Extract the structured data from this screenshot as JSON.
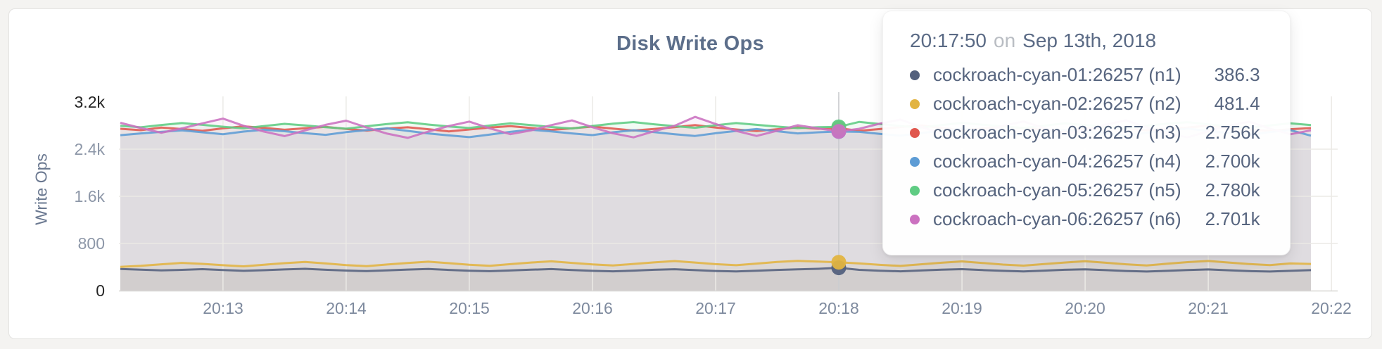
{
  "page": {
    "background": "#f4f3f1"
  },
  "card": {
    "background": "#ffffff",
    "border_color": "#e3e2e0"
  },
  "title": "Disk Write Ops",
  "tooltip": {
    "time": "20:17:50",
    "separator": "on",
    "date": "Sep 13th, 2018",
    "rows": [
      {
        "label": "cockroach-cyan-01:26257 (n1)",
        "value": "386.3",
        "color": "#53607d"
      },
      {
        "label": "cockroach-cyan-02:26257 (n2)",
        "value": "481.4",
        "color": "#e2b441"
      },
      {
        "label": "cockroach-cyan-03:26257 (n3)",
        "value": "2.756k",
        "color": "#e0574e"
      },
      {
        "label": "cockroach-cyan-04:26257 (n4)",
        "value": "2.700k",
        "color": "#5d9cd5"
      },
      {
        "label": "cockroach-cyan-05:26257 (n5)",
        "value": "2.780k",
        "color": "#5fcc83"
      },
      {
        "label": "cockroach-cyan-06:26257 (n6)",
        "value": "2.701k",
        "color": "#cb71c0"
      }
    ]
  },
  "chart_data": {
    "type": "line",
    "title": "Disk Write Ops",
    "xlabel": "",
    "ylabel": "Write Ops",
    "ylim": [
      0,
      3200
    ],
    "grid": true,
    "area_fill": true,
    "area_fill_opacity": 0.085,
    "x_tick_labels": [
      "20:13",
      "20:14",
      "20:15",
      "20:16",
      "20:17",
      "20:18",
      "20:19",
      "20:20",
      "20:21",
      "20:22"
    ],
    "y_ticks": [
      {
        "value": 3200,
        "label": "3.2k",
        "emphasis": true
      },
      {
        "value": 2400,
        "label": "2.4k",
        "emphasis": false
      },
      {
        "value": 1600,
        "label": "1.6k",
        "emphasis": false
      },
      {
        "value": 800,
        "label": "800",
        "emphasis": false
      },
      {
        "value": 0,
        "label": "0",
        "emphasis": true
      }
    ],
    "points_per_minute": 6,
    "hover_index": 35,
    "hover_time": "20:17:50",
    "series": [
      {
        "name": "cockroach-cyan-01:26257 (n1)",
        "color": "#53607d",
        "values": [
          368,
          356,
          344,
          352,
          364,
          349,
          336,
          346,
          359,
          370,
          354,
          340,
          331,
          343,
          357,
          367,
          351,
          338,
          329,
          341,
          355,
          365,
          349,
          336,
          327,
          339,
          353,
          363,
          347,
          333,
          325,
          337,
          351,
          361,
          370,
          386.3,
          352,
          338,
          327,
          341,
          355,
          364,
          349,
          335,
          326,
          339,
          353,
          362,
          347,
          333,
          324,
          336,
          350,
          360,
          345,
          331,
          323,
          336,
          348
        ]
      },
      {
        "name": "cockroach-cyan-02:26257 (n2)",
        "color": "#e2b441",
        "values": [
          402,
          420,
          447,
          471,
          454,
          431,
          412,
          439,
          466,
          487,
          461,
          434,
          416,
          443,
          469,
          491,
          466,
          439,
          421,
          449,
          476,
          497,
          471,
          444,
          426,
          453,
          479,
          501,
          476,
          449,
          431,
          459,
          486,
          504,
          492,
          481.4,
          461,
          437,
          419,
          447,
          473,
          495,
          469,
          442,
          424,
          451,
          477,
          499,
          473,
          446,
          428,
          456,
          483,
          503,
          477,
          451,
          433,
          461,
          452
        ]
      },
      {
        "name": "cockroach-cyan-03:26257 (n3)",
        "color": "#e0574e",
        "values": [
          2746,
          2722,
          2766,
          2741,
          2712,
          2753,
          2788,
          2760,
          2729,
          2756,
          2779,
          2744,
          2715,
          2750,
          2771,
          2739,
          2702,
          2734,
          2766,
          2790,
          2759,
          2727,
          2753,
          2783,
          2749,
          2717,
          2744,
          2773,
          2810,
          2768,
          2734,
          2707,
          2739,
          2770,
          2746,
          2756,
          2712,
          2741,
          2776,
          2803,
          2761,
          2723,
          2750,
          2786,
          2758,
          2729,
          2701,
          2747,
          2779,
          2753,
          2721,
          2744,
          2768,
          2800,
          2763,
          2736,
          2711,
          2739,
          2758
        ]
      },
      {
        "name": "cockroach-cyan-04:26257 (n4)",
        "color": "#5d9cd5",
        "values": [
          2638,
          2667,
          2694,
          2719,
          2687,
          2654,
          2699,
          2730,
          2704,
          2671,
          2644,
          2689,
          2723,
          2753,
          2711,
          2667,
          2634,
          2604,
          2647,
          2694,
          2729,
          2701,
          2667,
          2639,
          2687,
          2721,
          2689,
          2654,
          2624,
          2671,
          2709,
          2741,
          2704,
          2667,
          2686,
          2700,
          2694,
          2659,
          2629,
          2674,
          2714,
          2746,
          2709,
          2671,
          2639,
          2689,
          2725,
          2697,
          2661,
          2634,
          2679,
          2717,
          2749,
          2711,
          2674,
          2644,
          2691,
          2724,
          2629
        ]
      },
      {
        "name": "cockroach-cyan-05:26257 (n5)",
        "color": "#5fcc83",
        "values": [
          2798,
          2771,
          2811,
          2843,
          2813,
          2781,
          2754,
          2793,
          2830,
          2803,
          2774,
          2747,
          2789,
          2826,
          2856,
          2818,
          2786,
          2759,
          2801,
          2838,
          2809,
          2776,
          2751,
          2794,
          2833,
          2860,
          2823,
          2790,
          2763,
          2806,
          2843,
          2813,
          2783,
          2757,
          2772,
          2780,
          2863,
          2826,
          2793,
          2766,
          2808,
          2846,
          2816,
          2784,
          2759,
          2798,
          2838,
          2810,
          2778,
          2753,
          2796,
          2834,
          2858,
          2820,
          2788,
          2762,
          2804,
          2840,
          2810
        ]
      },
      {
        "name": "cockroach-cyan-06:26257 (n6)",
        "color": "#cb71c0",
        "values": [
          2848,
          2758,
          2678,
          2753,
          2838,
          2918,
          2798,
          2699,
          2622,
          2719,
          2813,
          2883,
          2768,
          2664,
          2592,
          2699,
          2793,
          2868,
          2753,
          2654,
          2718,
          2808,
          2888,
          2773,
          2670,
          2601,
          2703,
          2798,
          2948,
          2828,
          2710,
          2624,
          2713,
          2806,
          2752,
          2701,
          2746,
          2833,
          2902,
          2780,
          2668,
          2597,
          2700,
          2796,
          2870,
          2756,
          2659,
          2723,
          2816,
          2890,
          2768,
          2666,
          2601,
          2706,
          2800,
          2866,
          2750,
          2653,
          2720
        ]
      }
    ]
  }
}
